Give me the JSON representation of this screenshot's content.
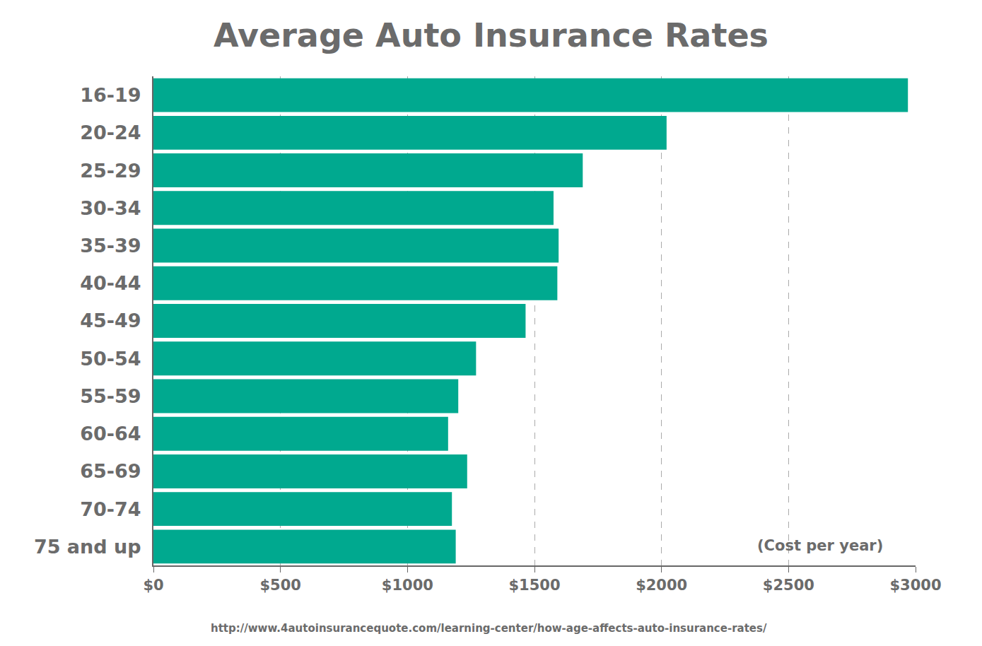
{
  "chart_data": {
    "type": "bar",
    "orientation": "horizontal",
    "title": "Average Auto Insurance Rates",
    "categories": [
      "16-19",
      "20-24",
      "25-29",
      "30-34",
      "35-39",
      "40-44",
      "45-49",
      "50-54",
      "55-59",
      "60-64",
      "65-69",
      "70-74",
      "75 and up"
    ],
    "values": [
      2970,
      2020,
      1690,
      1575,
      1595,
      1590,
      1465,
      1270,
      1200,
      1160,
      1235,
      1175,
      1190
    ],
    "color": "#00a98f",
    "xlim": [
      0,
      3000
    ],
    "xticks": [
      {
        "value": 0,
        "label": "$0"
      },
      {
        "value": 500,
        "label": "$500"
      },
      {
        "value": 1000,
        "label": "$1000"
      },
      {
        "value": 1500,
        "label": "$1500"
      },
      {
        "value": 2000,
        "label": "$2000"
      },
      {
        "value": 2500,
        "label": "$2500"
      },
      {
        "value": 3000,
        "label": "$3000"
      }
    ],
    "grid": true,
    "annotations": [
      "(Cost per year)"
    ],
    "source": "http://www.4autoinsurancequote.com/learning-center/how-age-affects-auto-insurance-rates/"
  }
}
